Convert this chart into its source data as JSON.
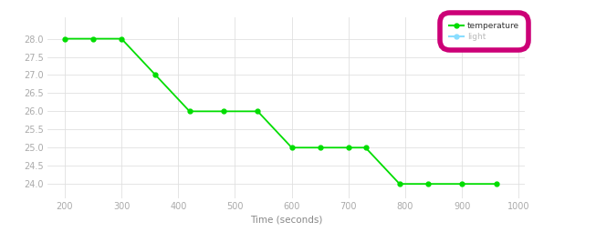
{
  "temp_x": [
    200,
    250,
    300,
    360,
    420,
    480,
    540,
    600,
    650,
    700,
    730,
    790,
    840,
    900,
    960
  ],
  "temp_y": [
    28,
    28,
    28,
    27,
    26,
    26,
    26,
    25,
    25,
    25,
    25,
    24,
    24,
    24,
    24
  ],
  "temp_color": "#00dd00",
  "light_color": "#88ddff",
  "xlabel": "Time (seconds)",
  "xlim": [
    170,
    1010
  ],
  "ylim": [
    23.6,
    28.6
  ],
  "yticks": [
    24,
    24.5,
    25,
    25.5,
    26,
    26.5,
    27,
    27.5,
    28
  ],
  "xticks": [
    200,
    300,
    400,
    500,
    600,
    700,
    800,
    900,
    1000
  ],
  "bg_color": "#ffffff",
  "grid_color": "#e0e0e0",
  "legend_labels": [
    "temperature",
    "light"
  ],
  "legend_circle_color": "#cc0077",
  "marker": "o",
  "markersize": 3.5,
  "linewidth": 1.3,
  "tick_labelsize": 7,
  "tick_color": "#aaaaaa",
  "xlabel_fontsize": 7.5,
  "xlabel_color": "#888888"
}
